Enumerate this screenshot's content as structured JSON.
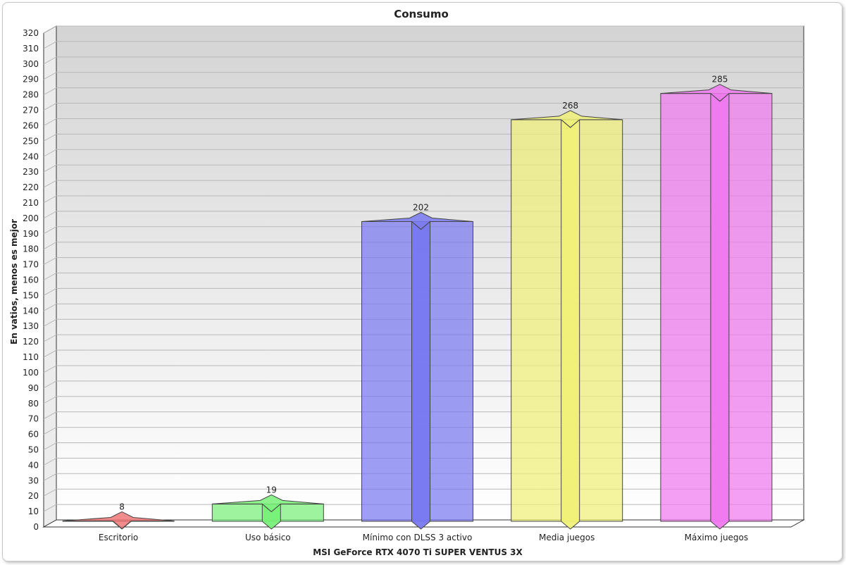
{
  "chart_data": {
    "type": "bar",
    "title": "Consumo",
    "xlabel": "MSI GeForce RTX 4070 Ti SUPER VENTUS 3X",
    "ylabel": "En vatios, menos es mejor",
    "categories": [
      "Escritorio",
      "Uso básico",
      "Mínimo con DLSS 3 activo",
      "Media juegos",
      "Máximo juegos"
    ],
    "values": [
      8,
      19,
      202,
      268,
      285
    ],
    "data_labels": [
      "8",
      "19",
      "202",
      "268",
      "285"
    ],
    "colors": [
      "#f07878",
      "#78f078",
      "#7878f0",
      "#f0f078",
      "#f078f0"
    ],
    "ylim": [
      0,
      320
    ],
    "yticks": [
      "0",
      "10",
      "20",
      "30",
      "40",
      "50",
      "60",
      "70",
      "80",
      "90",
      "100",
      "110",
      "120",
      "130",
      "140",
      "150",
      "160",
      "170",
      "180",
      "190",
      "200",
      "210",
      "220",
      "230",
      "240",
      "250",
      "260",
      "270",
      "280",
      "290",
      "300",
      "310",
      "320"
    ],
    "grid": true,
    "legend": "none",
    "style": "3d"
  }
}
